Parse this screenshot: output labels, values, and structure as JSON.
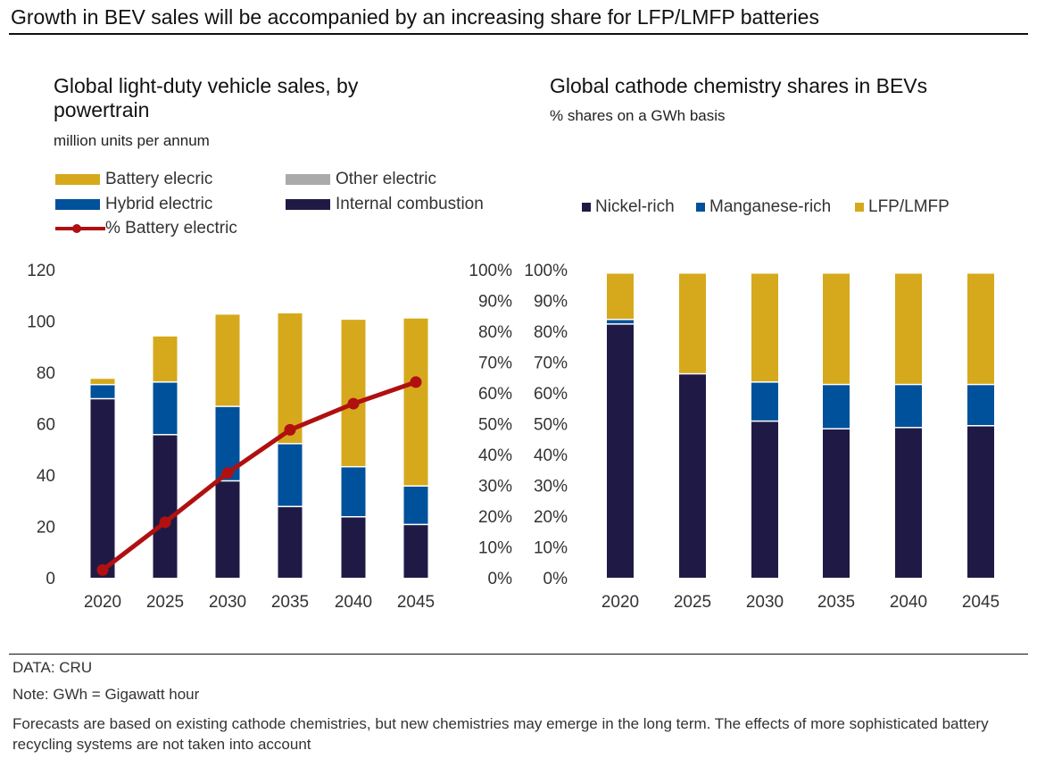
{
  "title": "Growth in BEV sales will be accompanied by an increasing share for LFP/LMFP batteries",
  "footer": {
    "source": "DATA: CRU",
    "note": "Note: GWh = Gigawatt hour",
    "disclaimer": "Forecasts are based on existing cathode chemistries, but new chemistries may emerge in the long term. The effects of more sophisticated battery recycling systems are not taken into account"
  },
  "chart_data": [
    {
      "type": "bar",
      "stacked": true,
      "title": "Global light-duty vehicle sales, by powertrain",
      "subtitle": "million units per annum",
      "categories": [
        "2020",
        "2025",
        "2030",
        "2035",
        "2040",
        "2045"
      ],
      "ylim": [
        0,
        120
      ],
      "yticks": [
        "0",
        "20",
        "40",
        "60",
        "80",
        "100",
        "120"
      ],
      "y2lim": [
        0,
        100
      ],
      "y2ticks": [
        "0%",
        "10%",
        "20%",
        "30%",
        "40%",
        "50%",
        "60%",
        "70%",
        "80%",
        "90%",
        "100%"
      ],
      "series": [
        {
          "name": "Internal combustion",
          "color": "#1f1a45",
          "values": [
            70,
            56,
            38,
            28,
            24,
            21
          ]
        },
        {
          "name": "Hybrid electric",
          "color": "#00519b",
          "values": [
            5.5,
            20.5,
            29,
            24.5,
            19.5,
            15
          ]
        },
        {
          "name": "Other electric",
          "color": "#aaaaaa",
          "values": [
            0,
            0,
            0,
            0,
            0,
            0
          ]
        },
        {
          "name": "Battery elecric",
          "color": "#d6a91c",
          "values": [
            2.5,
            18,
            36,
            51,
            57.5,
            65.5
          ]
        }
      ],
      "line": {
        "name": "% Battery electric",
        "color": "#b01010",
        "axis": "right",
        "values": [
          2.5,
          18,
          34,
          48,
          56.5,
          63.5
        ]
      }
    },
    {
      "type": "bar",
      "stacked": true,
      "title": "Global cathode chemistry shares in BEVs",
      "subtitle": "% shares on a GWh basis",
      "categories": [
        "2020",
        "2025",
        "2030",
        "2035",
        "2040",
        "2045"
      ],
      "ylim": [
        0,
        100
      ],
      "yticks": [
        "0%",
        "10%",
        "20%",
        "30%",
        "40%",
        "50%",
        "60%",
        "70%",
        "80%",
        "90%",
        "100%"
      ],
      "series": [
        {
          "name": "Nickel-rich",
          "color": "#1f1a45",
          "values": [
            83.3,
            67,
            51.5,
            49,
            49.4,
            50
          ]
        },
        {
          "name": "Manganese-rich",
          "color": "#00519b",
          "values": [
            1.5,
            0,
            12.8,
            14.5,
            14.1,
            13.5
          ]
        },
        {
          "name": "LFP/LMFP",
          "color": "#d6a91c",
          "values": [
            15.2,
            33,
            35.7,
            36.5,
            36.5,
            36.5
          ]
        }
      ]
    }
  ]
}
